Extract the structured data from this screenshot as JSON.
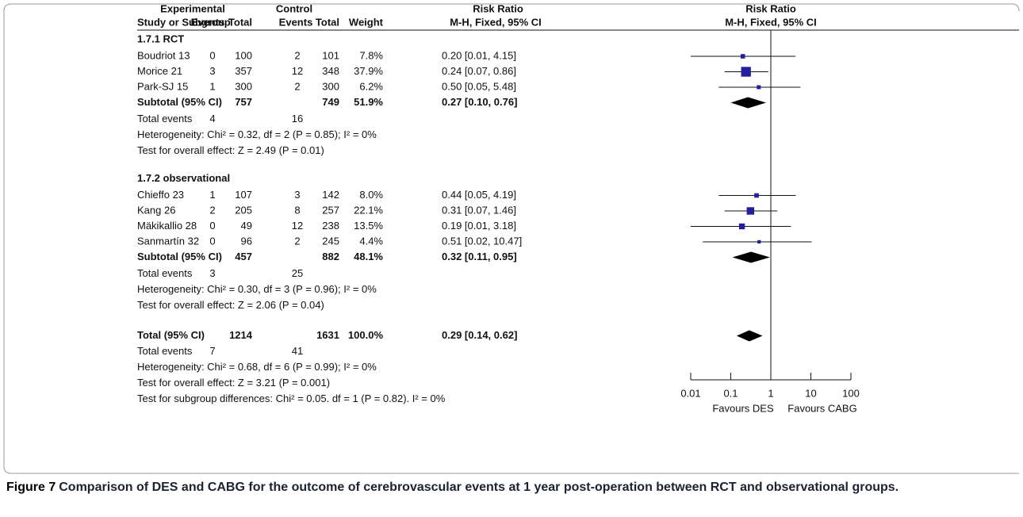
{
  "figure": {
    "header_top": [
      "Experimental",
      "Control",
      "Risk Ratio",
      "Risk Ratio"
    ],
    "columns": [
      "Study or Subgroup",
      "Events",
      "Total",
      "Events",
      "Total",
      "Weight",
      "M-H, Fixed, 95% CI",
      "M-H, Fixed, 95% CI"
    ],
    "groups": [
      {
        "title": "1.7.1 RCT",
        "studies": [
          {
            "name": "Boudriot 13",
            "exp_events": 0,
            "exp_total": 100,
            "ctl_events": 2,
            "ctl_total": 101,
            "weight": {
              "value": 7.8,
              "label": "7.8%"
            },
            "rr": {
              "value": 0.2,
              "low": 0.01,
              "high": 4.15,
              "label": "0.20 [0.01, 4.15]"
            }
          },
          {
            "name": "Morice 21",
            "exp_events": 3,
            "exp_total": 357,
            "ctl_events": 12,
            "ctl_total": 348,
            "weight": {
              "value": 37.9,
              "label": "37.9%"
            },
            "rr": {
              "value": 0.24,
              "low": 0.07,
              "high": 0.86,
              "label": "0.24 [0.07, 0.86]"
            }
          },
          {
            "name": "Park-SJ 15",
            "exp_events": 1,
            "exp_total": 300,
            "ctl_events": 2,
            "ctl_total": 300,
            "weight": {
              "value": 6.2,
              "label": "6.2%"
            },
            "rr": {
              "value": 0.5,
              "low": 0.05,
              "high": 5.48,
              "label": "0.50 [0.05, 5.48]"
            }
          }
        ],
        "subtotal": {
          "name": "Subtotal (95% CI)",
          "exp_total": 757,
          "ctl_total": 749,
          "weight": {
            "value": 51.9,
            "label": "51.9%"
          },
          "rr": {
            "value": 0.27,
            "low": 0.1,
            "high": 0.76,
            "label": "0.27 [0.10, 0.76]"
          }
        },
        "total_events": {
          "label": "Total events",
          "exp": 4,
          "ctl": 16
        },
        "heterogeneity": "Heterogeneity: Chi² = 0.32, df = 2 (P = 0.85); I² = 0%",
        "overall_effect": "Test for overall effect: Z = 2.49 (P = 0.01)"
      },
      {
        "title": "1.7.2 observational",
        "studies": [
          {
            "name": "Chieffo 23",
            "exp_events": 1,
            "exp_total": 107,
            "ctl_events": 3,
            "ctl_total": 142,
            "weight": {
              "value": 8.0,
              "label": "8.0%"
            },
            "rr": {
              "value": 0.44,
              "low": 0.05,
              "high": 4.19,
              "label": "0.44 [0.05, 4.19]"
            }
          },
          {
            "name": "Kang 26",
            "exp_events": 2,
            "exp_total": 205,
            "ctl_events": 8,
            "ctl_total": 257,
            "weight": {
              "value": 22.1,
              "label": "22.1%"
            },
            "rr": {
              "value": 0.31,
              "low": 0.07,
              "high": 1.46,
              "label": "0.31 [0.07, 1.46]"
            }
          },
          {
            "name": "Mäkikallio 28",
            "exp_events": 0,
            "exp_total": 49,
            "ctl_events": 12,
            "ctl_total": 238,
            "weight": {
              "value": 13.5,
              "label": "13.5%"
            },
            "rr": {
              "value": 0.19,
              "low": 0.01,
              "high": 3.18,
              "label": "0.19 [0.01, 3.18]"
            }
          },
          {
            "name": "Sanmartín 32",
            "exp_events": 0,
            "exp_total": 96,
            "ctl_events": 2,
            "ctl_total": 245,
            "weight": {
              "value": 4.4,
              "label": "4.4%"
            },
            "rr": {
              "value": 0.51,
              "low": 0.02,
              "high": 10.47,
              "label": "0.51 [0.02, 10.47]"
            }
          }
        ],
        "subtotal": {
          "name": "Subtotal (95% CI)",
          "exp_total": 457,
          "ctl_total": 882,
          "weight": {
            "value": 48.1,
            "label": "48.1%"
          },
          "rr": {
            "value": 0.32,
            "low": 0.11,
            "high": 0.95,
            "label": "0.32 [0.11, 0.95]"
          }
        },
        "total_events": {
          "label": "Total events",
          "exp": 3,
          "ctl": 25
        },
        "heterogeneity": "Heterogeneity: Chi² = 0.30, df = 3 (P = 0.96); I² = 0%",
        "overall_effect": "Test for overall effect: Z = 2.06 (P = 0.04)"
      }
    ],
    "overall": {
      "name": "Total (95% CI)",
      "exp_total": 1214,
      "ctl_total": 1631,
      "weight": {
        "value": 100.0,
        "label": "100.0%"
      },
      "rr": {
        "value": 0.29,
        "low": 0.14,
        "high": 0.62,
        "label": "0.29 [0.14, 0.62]"
      },
      "total_events": {
        "label": "Total events",
        "exp": 7,
        "ctl": 41
      },
      "heterogeneity": "Heterogeneity: Chi² = 0.68, df = 6 (P = 0.99); I² = 0%",
      "overall_effect": "Test for overall effect: Z = 3.21 (P = 0.001)",
      "subgroup_test": "Test for subgroup differences: Chi² = 0.05. df = 1 (P = 0.82). I² = 0%"
    },
    "axis": {
      "scale": "log",
      "xlim": [
        0.01,
        100
      ],
      "xticks": [
        0.01,
        0.1,
        1,
        10,
        100
      ],
      "favours_left": "Favours DES",
      "favours_right": "Favours CABG",
      "color": "#1f1fa0"
    },
    "caption": {
      "label": "Figure 7",
      "text": "Comparison of DES and CABG for the outcome of cerebrovascular events at 1 year post-operation between RCT and observational groups."
    }
  }
}
